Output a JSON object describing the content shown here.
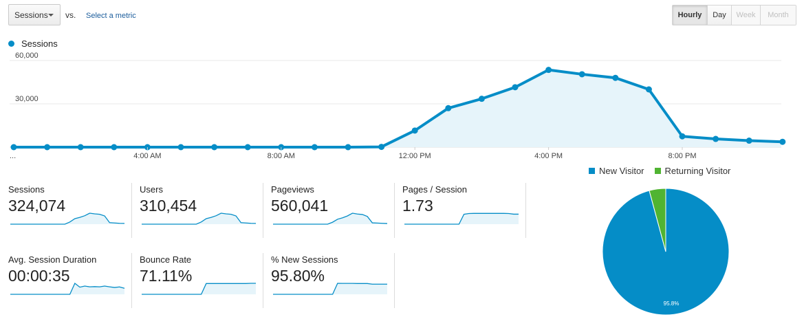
{
  "controls": {
    "metric_select": "Sessions",
    "vs_label": "vs.",
    "select_metric_link": "Select a metric",
    "granularity": [
      {
        "label": "Hourly",
        "state": "active"
      },
      {
        "label": "Day",
        "state": "normal"
      },
      {
        "label": "Week",
        "state": "disabled"
      },
      {
        "label": "Month",
        "state": "disabled"
      }
    ]
  },
  "colors": {
    "primary": "#058dc7",
    "secondary": "#50b432",
    "area_fill": "#e6f4fa"
  },
  "chart_data": [
    {
      "type": "line",
      "title": "",
      "series": [
        {
          "name": "Sessions",
          "values": [
            0,
            0,
            0,
            0,
            0,
            0,
            0,
            0,
            0,
            0,
            0,
            200,
            11500,
            27000,
            33500,
            41500,
            53500,
            50500,
            48000,
            40000,
            7500,
            5700,
            4500,
            3700
          ]
        }
      ],
      "x_tick_labels": [
        "...",
        "4:00 AM",
        "8:00 AM",
        "12:00 PM",
        "4:00 PM",
        "8:00 PM"
      ],
      "y_tick_labels": [
        "60,000",
        "30,000"
      ],
      "ylim": [
        0,
        60000
      ],
      "grid": true,
      "legend": "top-left"
    },
    {
      "type": "pie",
      "slices": [
        {
          "label": "New Visitor",
          "value": 95.8,
          "color": "#058dc7"
        },
        {
          "label": "Returning Visitor",
          "value": 4.2,
          "color": "#50b432"
        }
      ],
      "data_labels": [
        "95.8%"
      ],
      "legend": "top"
    }
  ],
  "metrics": [
    {
      "label": "Sessions",
      "value": "324,074",
      "spark": [
        0,
        0,
        0,
        0,
        0,
        0,
        0,
        0,
        0,
        0,
        0,
        0,
        20,
        50,
        62,
        77,
        100,
        94,
        90,
        75,
        14,
        11,
        8,
        7
      ]
    },
    {
      "label": "Users",
      "value": "310,454",
      "spark": [
        0,
        0,
        0,
        0,
        0,
        0,
        0,
        0,
        0,
        0,
        0,
        0,
        20,
        50,
        62,
        77,
        100,
        94,
        90,
        75,
        14,
        11,
        8,
        7
      ]
    },
    {
      "label": "Pageviews",
      "value": "560,041",
      "spark": [
        0,
        0,
        0,
        0,
        0,
        0,
        0,
        0,
        0,
        0,
        0,
        0,
        18,
        45,
        58,
        75,
        100,
        92,
        88,
        70,
        12,
        10,
        8,
        6
      ]
    },
    {
      "label": "Pages / Session",
      "value": "1.73",
      "spark": [
        0,
        0,
        0,
        0,
        0,
        0,
        0,
        0,
        0,
        0,
        0,
        0,
        90,
        97,
        98,
        98,
        98,
        98,
        98,
        98,
        98,
        97,
        91,
        91
      ]
    },
    {
      "label": "Avg. Session Duration",
      "value": "00:00:35",
      "spark": [
        0,
        0,
        0,
        0,
        0,
        0,
        0,
        0,
        0,
        0,
        0,
        0,
        0,
        100,
        65,
        75,
        68,
        70,
        68,
        75,
        68,
        62,
        67,
        55
      ]
    },
    {
      "label": "Bounce Rate",
      "value": "71.11%",
      "spark": [
        0,
        0,
        0,
        0,
        0,
        0,
        0,
        0,
        0,
        0,
        0,
        0,
        0,
        98,
        98,
        98,
        98,
        98,
        98,
        98,
        98,
        98,
        100,
        100
      ]
    },
    {
      "label": "% New Sessions",
      "value": "95.80%",
      "spark": [
        0,
        0,
        0,
        0,
        0,
        0,
        0,
        0,
        0,
        0,
        0,
        0,
        0,
        100,
        99,
        99,
        99,
        98,
        98,
        98,
        92,
        92,
        92,
        92
      ]
    }
  ]
}
